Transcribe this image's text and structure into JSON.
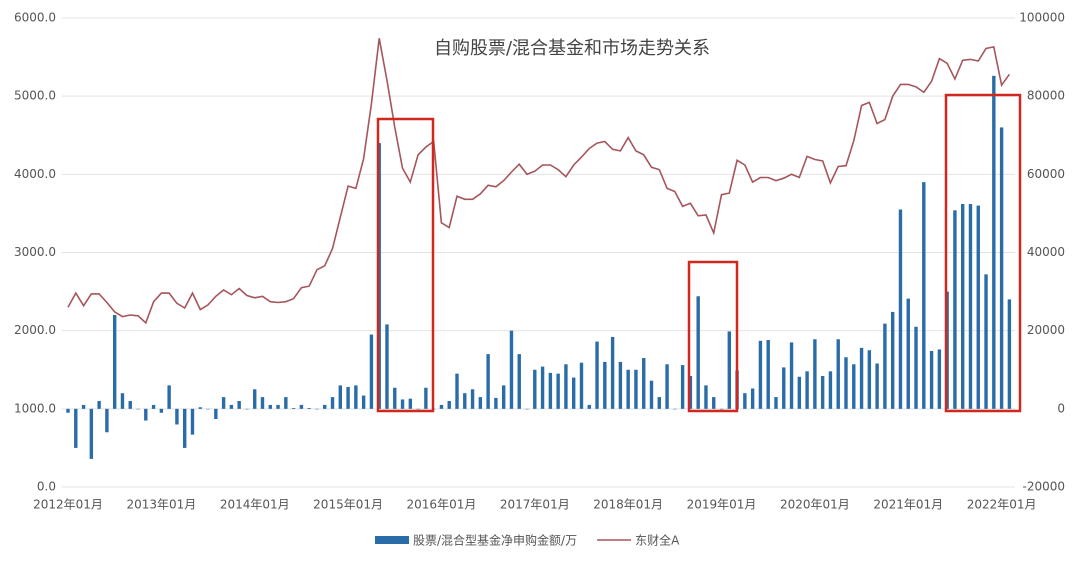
{
  "chart_data": {
    "type": "combo",
    "title": "自购股票/混合基金和市场走势关系",
    "categories": [
      "2012年01月",
      null,
      null,
      null,
      null,
      null,
      null,
      null,
      null,
      null,
      null,
      null,
      "2013年01月",
      null,
      null,
      null,
      null,
      null,
      null,
      null,
      null,
      null,
      null,
      null,
      "2014年01月",
      null,
      null,
      null,
      null,
      null,
      null,
      null,
      null,
      null,
      null,
      null,
      "2015年01月",
      null,
      null,
      null,
      null,
      null,
      null,
      null,
      null,
      null,
      null,
      null,
      "2016年01月",
      null,
      null,
      null,
      null,
      null,
      null,
      null,
      null,
      null,
      null,
      null,
      "2017年01月",
      null,
      null,
      null,
      null,
      null,
      null,
      null,
      null,
      null,
      null,
      null,
      "2018年01月",
      null,
      null,
      null,
      null,
      null,
      null,
      null,
      null,
      null,
      null,
      null,
      "2019年01月",
      null,
      null,
      null,
      null,
      null,
      null,
      null,
      null,
      null,
      null,
      null,
      "2020年01月",
      null,
      null,
      null,
      null,
      null,
      null,
      null,
      null,
      null,
      null,
      null,
      "2021年01月",
      null,
      null,
      null,
      null,
      null,
      null,
      null,
      null,
      null,
      null,
      null,
      "2022年01月",
      null
    ],
    "series": [
      {
        "name": "股票/混合型基金净申购金额/万",
        "type": "bar",
        "axis": "y2",
        "color": "#2a6ca8",
        "values": [
          -1000,
          -10000,
          1000,
          -12800,
          2000,
          -6000,
          24000,
          4000,
          2000,
          0,
          -3000,
          1000,
          -1000,
          6000,
          -4000,
          -10000,
          -6600,
          400,
          0,
          -2600,
          3000,
          1000,
          2000,
          0,
          5000,
          3000,
          1000,
          1000,
          3000,
          200,
          1000,
          200,
          0,
          1000,
          3000,
          6000,
          5600,
          6000,
          3400,
          19000,
          68000,
          21600,
          5400,
          2400,
          2600,
          0,
          5400,
          0,
          1000,
          2000,
          9000,
          4000,
          5000,
          3000,
          14000,
          2800,
          6000,
          20000,
          14000,
          0,
          10000,
          10800,
          9200,
          9000,
          11400,
          8000,
          11800,
          1000,
          17200,
          12000,
          18400,
          12000,
          10000,
          10000,
          13000,
          7200,
          3000,
          11400,
          0,
          11200,
          8400,
          28800,
          6000,
          3000,
          0,
          19800,
          9800,
          4000,
          5200,
          17400,
          17600,
          3000,
          10600,
          17000,
          8200,
          9600,
          17800,
          8400,
          9600,
          17800,
          13200,
          11400,
          15600,
          15000,
          11600,
          21800,
          24800,
          51000,
          28200,
          21000,
          58000,
          14800,
          15200,
          30000,
          50800,
          52400,
          52400,
          52000,
          34400,
          85200,
          72000,
          28000
        ]
      },
      {
        "name": "东财全A",
        "type": "line",
        "color": "#a5565c",
        "values": [
          2300,
          2480,
          2320,
          2470,
          2470,
          2360,
          2240,
          2180,
          2200,
          2190,
          2100,
          2370,
          2480,
          2480,
          2350,
          2290,
          2480,
          2270,
          2330,
          2440,
          2520,
          2460,
          2540,
          2450,
          2420,
          2440,
          2370,
          2360,
          2370,
          2410,
          2550,
          2570,
          2780,
          2830,
          3050,
          3450,
          3850,
          3820,
          4200,
          4900,
          5740,
          5200,
          4600,
          4080,
          3900,
          4250,
          4350,
          4420,
          3380,
          3320,
          3720,
          3680,
          3680,
          3750,
          3860,
          3840,
          3920,
          4030,
          4130,
          4000,
          4040,
          4120,
          4120,
          4060,
          3970,
          4120,
          4220,
          4330,
          4400,
          4420,
          4320,
          4300,
          4470,
          4300,
          4250,
          4090,
          4060,
          3820,
          3780,
          3590,
          3630,
          3470,
          3480,
          3250,
          3740,
          3760,
          4180,
          4120,
          3900,
          3960,
          3960,
          3920,
          3950,
          4000,
          3960,
          4230,
          4190,
          4170,
          3890,
          4100,
          4110,
          4430,
          4880,
          4920,
          4650,
          4700,
          5000,
          5150,
          5150,
          5120,
          5050,
          5190,
          5480,
          5420,
          5220,
          5460,
          5470,
          5450,
          5610,
          5630,
          5140,
          5280
        ]
      }
    ],
    "ylim": [
      0,
      6000
    ],
    "yticks": [
      {
        "value": 0,
        "label": "0.0"
      },
      {
        "value": 1000,
        "label": "1000.0"
      },
      {
        "value": 2000,
        "label": "2000.0"
      },
      {
        "value": 3000,
        "label": "3000.0"
      },
      {
        "value": 4000,
        "label": "4000.0"
      },
      {
        "value": 5000,
        "label": "5000.0"
      },
      {
        "value": 6000,
        "label": "6000.0"
      }
    ],
    "y2lim": [
      -20000,
      100000
    ],
    "y2ticks": [
      -20000,
      0,
      20000,
      40000,
      60000,
      80000,
      100000
    ],
    "grid": true
  }
}
